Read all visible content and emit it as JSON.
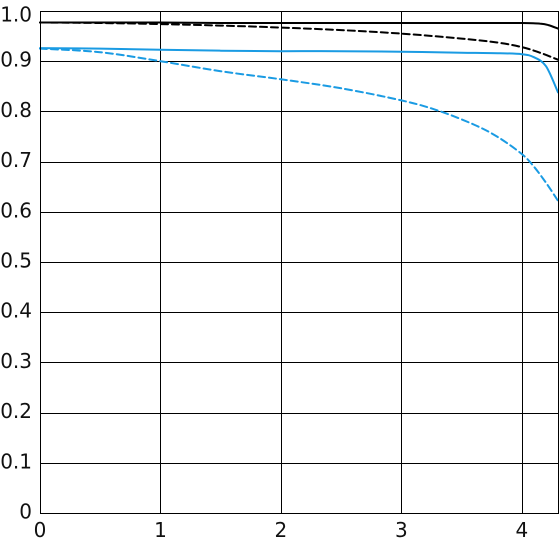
{
  "chart_data": {
    "type": "line",
    "title": "",
    "xlabel": "",
    "ylabel": "",
    "xlim": [
      0,
      4.3
    ],
    "ylim": [
      0,
      1.0
    ],
    "grid": true,
    "x_ticks": [
      0,
      1,
      2,
      3,
      4
    ],
    "x_tick_labels": [
      "0",
      "1",
      "2",
      "3",
      "4"
    ],
    "y_ticks": [
      0,
      0.1,
      0.2,
      0.3,
      0.4,
      0.5,
      0.6,
      0.7,
      0.8,
      0.9,
      1.0
    ],
    "y_tick_labels": [
      "0",
      "0.1",
      "0.2",
      "0.3",
      "0.4",
      "0.5",
      "0.6",
      "0.7",
      "0.8",
      "0.9",
      "1.0"
    ],
    "series": [
      {
        "color": "#000000",
        "style": "solid",
        "x": [
          0,
          0.5,
          1.0,
          1.5,
          2.0,
          2.5,
          3.0,
          3.5,
          3.8,
          4.0,
          4.15,
          4.22,
          4.3
        ],
        "y": [
          0.977,
          0.977,
          0.977,
          0.976,
          0.976,
          0.976,
          0.976,
          0.976,
          0.976,
          0.976,
          0.975,
          0.972,
          0.965
        ]
      },
      {
        "color": "#000000",
        "style": "dashed",
        "x": [
          0,
          0.5,
          1.0,
          1.5,
          2.0,
          2.5,
          3.0,
          3.5,
          3.8,
          4.0,
          4.15,
          4.3
        ],
        "y": [
          0.977,
          0.976,
          0.974,
          0.971,
          0.967,
          0.962,
          0.955,
          0.945,
          0.937,
          0.928,
          0.917,
          0.903
        ]
      },
      {
        "color": "#1a9be3",
        "style": "solid",
        "x": [
          0,
          0.5,
          1.0,
          1.5,
          2.0,
          2.5,
          3.0,
          3.5,
          3.8,
          4.0,
          4.1,
          4.2,
          4.3
        ],
        "y": [
          0.926,
          0.925,
          0.923,
          0.921,
          0.92,
          0.92,
          0.919,
          0.917,
          0.916,
          0.914,
          0.908,
          0.89,
          0.838
        ]
      },
      {
        "color": "#1a9be3",
        "style": "dashed",
        "x": [
          0,
          0.5,
          1.0,
          1.5,
          2.0,
          2.5,
          3.0,
          3.3,
          3.6,
          3.8,
          4.0,
          4.1,
          4.2,
          4.3
        ],
        "y": [
          0.925,
          0.918,
          0.9,
          0.88,
          0.864,
          0.846,
          0.822,
          0.802,
          0.774,
          0.749,
          0.715,
          0.69,
          0.658,
          0.622
        ]
      }
    ]
  }
}
